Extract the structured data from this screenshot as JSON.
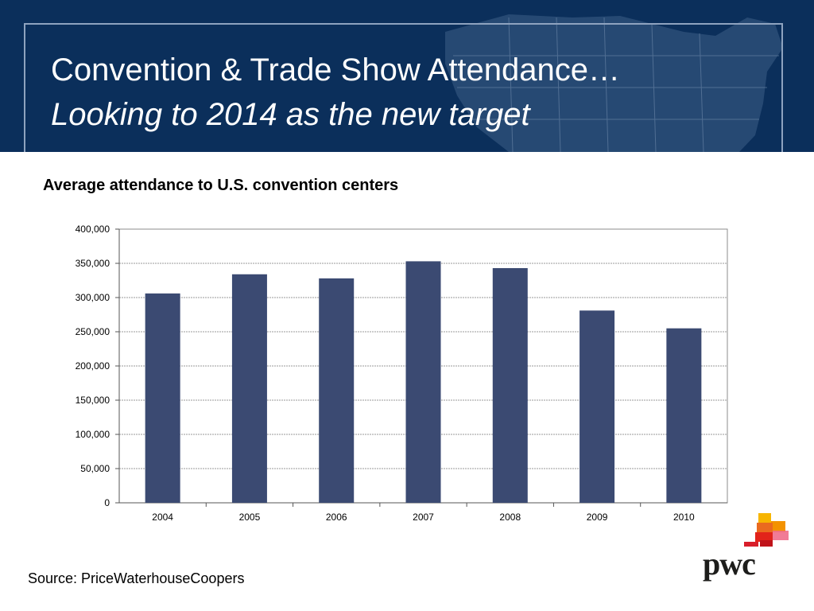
{
  "slide": {
    "title_line1": "Convention & Trade Show Attendance…",
    "title_line2": "Looking to 2014 as the new target",
    "source": "Source: PriceWaterhouseCoopers",
    "logo_text": "pwc"
  },
  "colors": {
    "header_bg": "#0b2f5b",
    "bar": "#3b4a72",
    "logo_orange": "#f39200",
    "logo_red": "#e2231a"
  },
  "chart_data": {
    "type": "bar",
    "title": "Average attendance to U.S. convention centers",
    "xlabel": "",
    "ylabel": "",
    "categories": [
      "2004",
      "2005",
      "2006",
      "2007",
      "2008",
      "2009",
      "2010"
    ],
    "values": [
      306000,
      334000,
      328000,
      353000,
      343000,
      281000,
      255000
    ],
    "ylim": [
      0,
      400000
    ],
    "yticks": [
      0,
      50000,
      100000,
      150000,
      200000,
      250000,
      300000,
      350000,
      400000
    ],
    "ytick_labels": [
      "0",
      "50,000",
      "100,000",
      "150,000",
      "200,000",
      "250,000",
      "300,000",
      "350,000",
      "400,000"
    ],
    "grid": "horizontal dashed",
    "legend": "none"
  }
}
